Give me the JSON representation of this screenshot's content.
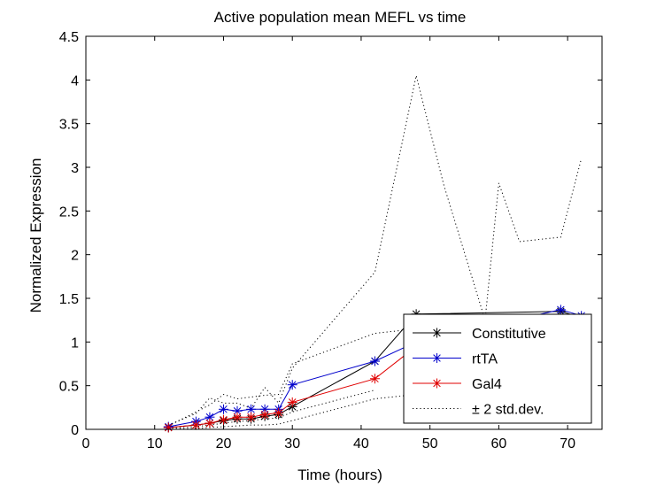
{
  "chart_data": {
    "type": "line",
    "title": "Active population mean MEFL vs time",
    "xlabel": "Time (hours)",
    "ylabel": "Normalized Expression",
    "xlim": [
      0,
      75
    ],
    "ylim": [
      0,
      4.5
    ],
    "xticks": [
      0,
      10,
      20,
      30,
      40,
      50,
      60,
      70
    ],
    "yticks": [
      0,
      0.5,
      1,
      1.5,
      2,
      2.5,
      3,
      3.5,
      4,
      4.5
    ],
    "ytick_labels": [
      "0",
      "0.5",
      "1",
      "1.5",
      "2",
      "2.5",
      "3",
      "3.5",
      "4",
      "4.5"
    ],
    "legend_position": "bottom-right",
    "series": [
      {
        "name": "Constitutive",
        "color": "#000000",
        "marker": "asterisk",
        "x": [
          12,
          16,
          18,
          20,
          22,
          24,
          26,
          28,
          30,
          42,
          48,
          69,
          72
        ],
        "y": [
          0.02,
          0.05,
          0.07,
          0.1,
          0.12,
          0.12,
          0.15,
          0.17,
          0.26,
          0.78,
          1.32,
          1.35,
          1.28
        ]
      },
      {
        "name": "rtTA",
        "color": "#0000cc",
        "marker": "asterisk",
        "x": [
          12,
          16,
          18,
          20,
          22,
          24,
          26,
          28,
          30,
          42,
          48,
          69,
          72
        ],
        "y": [
          0.03,
          0.09,
          0.14,
          0.23,
          0.21,
          0.23,
          0.23,
          0.23,
          0.51,
          0.78,
          1.0,
          1.37,
          1.3
        ]
      },
      {
        "name": "Gal4",
        "color": "#e00000",
        "marker": "asterisk",
        "x": [
          12,
          16,
          18,
          20,
          22,
          24,
          26,
          28,
          30,
          42,
          48
        ],
        "y": [
          0.02,
          0.05,
          0.07,
          0.11,
          0.14,
          0.14,
          0.17,
          0.19,
          0.31,
          0.58,
          0.95
        ]
      },
      {
        "name": "± 2 std.dev.",
        "color": "#000000",
        "style": "dotted",
        "bands": [
          {
            "x": [
              12,
              16,
              18,
              20,
              22,
              24,
              26,
              28,
              30,
              42,
              48,
              52,
              58,
              60,
              63,
              69,
              72
            ],
            "y": [
              0.05,
              0.18,
              0.36,
              0.3,
              0.3,
              0.24,
              0.48,
              0.3,
              0.7,
              1.8,
              4.05,
              2.8,
              1.25,
              2.82,
              2.15,
              2.2,
              3.1
            ]
          },
          {
            "x": [
              12,
              16,
              18,
              20,
              22,
              24,
              26,
              28,
              30,
              42,
              48
            ],
            "y": [
              0.0,
              0.01,
              0.02,
              0.03,
              0.04,
              0.05,
              0.05,
              0.06,
              0.1,
              0.35,
              0.4
            ]
          },
          {
            "x": [
              12,
              16,
              18,
              20,
              22,
              24,
              26,
              28,
              30,
              42,
              48
            ],
            "y": [
              0.04,
              0.2,
              0.28,
              0.4,
              0.35,
              0.37,
              0.39,
              0.4,
              0.75,
              1.1,
              1.15
            ]
          },
          {
            "x": [
              12,
              16,
              18,
              20,
              22,
              24,
              26,
              28,
              30,
              42
            ],
            "y": [
              0.01,
              0.03,
              0.05,
              0.07,
              0.09,
              0.1,
              0.12,
              0.13,
              0.2,
              0.45
            ]
          }
        ]
      }
    ]
  }
}
